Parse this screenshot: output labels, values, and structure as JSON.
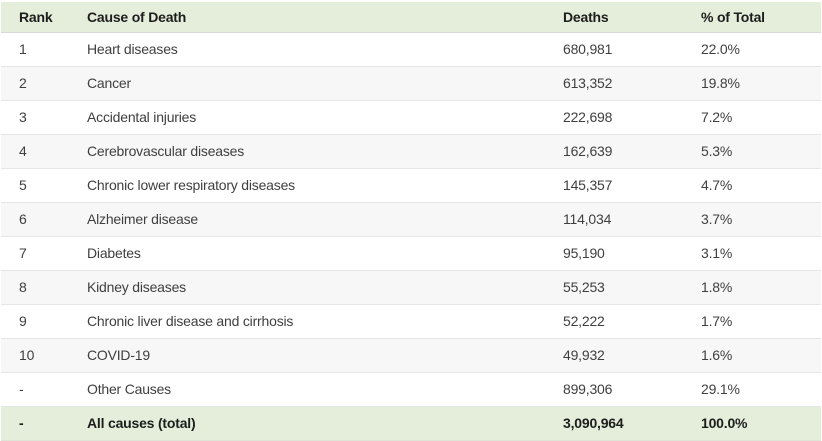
{
  "chart_data": {
    "type": "table",
    "columns": [
      "Rank",
      "Cause of Death",
      "Deaths",
      "% of Total"
    ],
    "rows": [
      [
        "1",
        "Heart diseases",
        "680,981",
        "22.0%"
      ],
      [
        "2",
        "Cancer",
        "613,352",
        "19.8%"
      ],
      [
        "3",
        "Accidental injuries",
        "222,698",
        "7.2%"
      ],
      [
        "4",
        "Cerebrovascular diseases",
        "162,639",
        "5.3%"
      ],
      [
        "5",
        "Chronic lower respiratory diseases",
        "145,357",
        "4.7%"
      ],
      [
        "6",
        "Alzheimer disease",
        "114,034",
        "3.7%"
      ],
      [
        "7",
        "Diabetes",
        "95,190",
        "3.1%"
      ],
      [
        "8",
        "Kidney diseases",
        "55,253",
        "1.8%"
      ],
      [
        "9",
        "Chronic liver disease and cirrhosis",
        "52,222",
        "1.7%"
      ],
      [
        "10",
        "COVID-19",
        "49,932",
        "1.6%"
      ],
      [
        "-",
        "Other Causes",
        "899,306",
        "29.1%"
      ]
    ],
    "total_row": [
      "-",
      "All causes (total)",
      "3,090,964",
      "100.0%"
    ]
  },
  "colors": {
    "header_bg": "#e5eeda",
    "total_bg": "#e5eeda",
    "row_alt_bg": "#f7f7f7",
    "row_border": "#e6e6e6",
    "header_text": "#1d1d1d",
    "body_text": "#3f3f3f"
  }
}
